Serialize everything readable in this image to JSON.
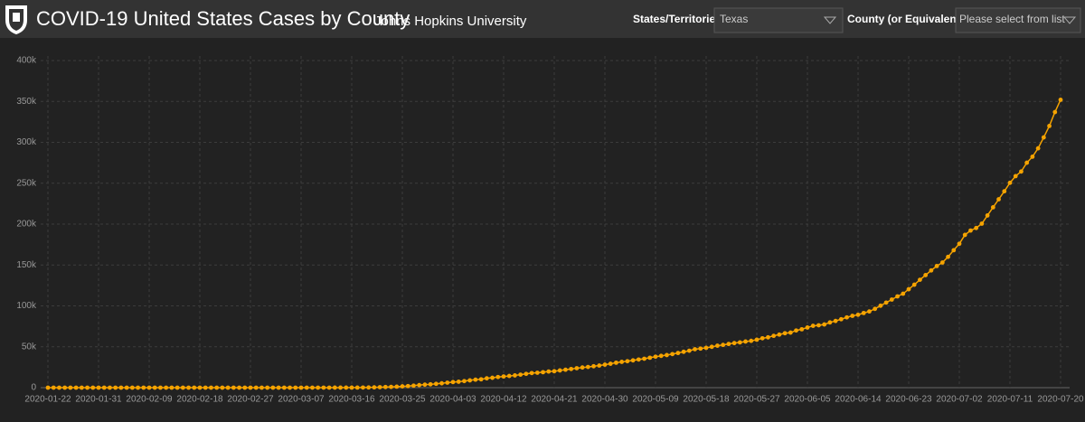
{
  "header": {
    "title": "COVID-19 United States Cases by County",
    "subtitle": "Johns Hopkins University"
  },
  "filters": [
    {
      "label": "States/Territories",
      "value": "Texas"
    },
    {
      "label": "County (or Equivalent)",
      "value": "Please select from list"
    }
  ],
  "chart_data": {
    "type": "line",
    "color": "#f5a300",
    "categories": [
      "2020-01-22",
      null,
      null,
      null,
      null,
      null,
      null,
      null,
      null,
      "2020-01-31",
      null,
      null,
      null,
      null,
      null,
      null,
      null,
      null,
      "2020-02-09",
      null,
      null,
      null,
      null,
      null,
      null,
      null,
      null,
      "2020-02-18",
      null,
      null,
      null,
      null,
      null,
      null,
      null,
      null,
      "2020-02-27",
      null,
      null,
      null,
      null,
      null,
      null,
      null,
      null,
      "2020-03-07",
      null,
      null,
      null,
      null,
      null,
      null,
      null,
      null,
      "2020-03-16",
      null,
      null,
      null,
      null,
      null,
      null,
      null,
      null,
      "2020-03-25",
      null,
      null,
      null,
      null,
      null,
      null,
      null,
      null,
      "2020-04-03",
      null,
      null,
      null,
      null,
      null,
      null,
      null,
      null,
      "2020-04-12",
      null,
      null,
      null,
      null,
      null,
      null,
      null,
      null,
      "2020-04-21",
      null,
      null,
      null,
      null,
      null,
      null,
      null,
      null,
      "2020-04-30",
      null,
      null,
      null,
      null,
      null,
      null,
      null,
      null,
      "2020-05-09",
      null,
      null,
      null,
      null,
      null,
      null,
      null,
      null,
      "2020-05-18",
      null,
      null,
      null,
      null,
      null,
      null,
      null,
      null,
      "2020-05-27",
      null,
      null,
      null,
      null,
      null,
      null,
      null,
      null,
      "2020-06-05",
      null,
      null,
      null,
      null,
      null,
      null,
      null,
      null,
      "2020-06-14",
      null,
      null,
      null,
      null,
      null,
      null,
      null,
      null,
      "2020-06-23",
      null,
      null,
      null,
      null,
      null,
      null,
      null,
      null,
      "2020-07-02",
      null,
      null,
      null,
      null,
      null,
      null,
      null,
      null,
      "2020-07-11",
      null,
      null,
      null,
      null,
      null,
      null,
      null,
      null,
      "2020-07-20"
    ],
    "values": [
      0,
      0,
      0,
      0,
      0,
      0,
      0,
      0,
      0,
      0,
      0,
      0,
      0,
      0,
      0,
      0,
      0,
      0,
      0,
      0,
      0,
      0,
      0,
      0,
      0,
      0,
      0,
      0,
      0,
      0,
      0,
      0,
      0,
      0,
      0,
      0,
      0,
      0,
      0,
      0,
      0,
      0,
      1,
      1,
      5,
      8,
      11,
      12,
      13,
      21,
      27,
      43,
      57,
      72,
      85,
      110,
      173,
      260,
      394,
      581,
      758,
      957,
      1229,
      1563,
      1937,
      2455,
      3147,
      3680,
      4068,
      4669,
      5330,
      6110,
      6812,
      7276,
      8043,
      8925,
      9779,
      10230,
      11426,
      12105,
      13023,
      13677,
      14275,
      14987,
      15907,
      16876,
      17849,
      18260,
      18923,
      19751,
      20087,
      21069,
      21944,
      22806,
      23773,
      24631,
      25297,
      26171,
      27054,
      28087,
      29229,
      30522,
      31548,
      32332,
      33369,
      34422,
      35390,
      36609,
      37860,
      38869,
      39869,
      41048,
      42403,
      43851,
      45198,
      46999,
      47784,
      48693,
      49912,
      51323,
      52268,
      53449,
      54509,
      55348,
      56409,
      57230,
      58658,
      60395,
      61522,
      63384,
      64880,
      66568,
      67310,
      69920,
      71401,
      73553,
      75616,
      76263,
      77253,
      79757,
      81583,
      83680,
      85937,
      87854,
      89108,
      91302,
      93206,
      96335,
      100198,
      104022,
      107735,
      111601,
      114881,
      120370,
      125921,
      131917,
      137624,
      143371,
      148760,
      153011,
      159986,
      168062,
      175977,
      186820,
      192135,
      195239,
      200557,
      210585,
      220564,
      230346,
      240111,
      250462,
      258658,
      264313,
      275058,
      282365,
      292656,
      306000,
      320000,
      337000,
      352000
    ],
    "ylim": [
      0,
      400000
    ],
    "yticks": [
      0,
      {
        "value": 50000,
        "label": "50k"
      },
      {
        "value": 100000,
        "label": "100k"
      },
      {
        "value": 150000,
        "label": "150k"
      },
      {
        "value": 200000,
        "label": "200k"
      },
      {
        "value": 250000,
        "label": "250k"
      },
      {
        "value": 300000,
        "label": "300k"
      },
      {
        "value": 350000,
        "label": "350k"
      },
      {
        "value": 400000,
        "label": "400k"
      }
    ],
    "grid": true
  }
}
